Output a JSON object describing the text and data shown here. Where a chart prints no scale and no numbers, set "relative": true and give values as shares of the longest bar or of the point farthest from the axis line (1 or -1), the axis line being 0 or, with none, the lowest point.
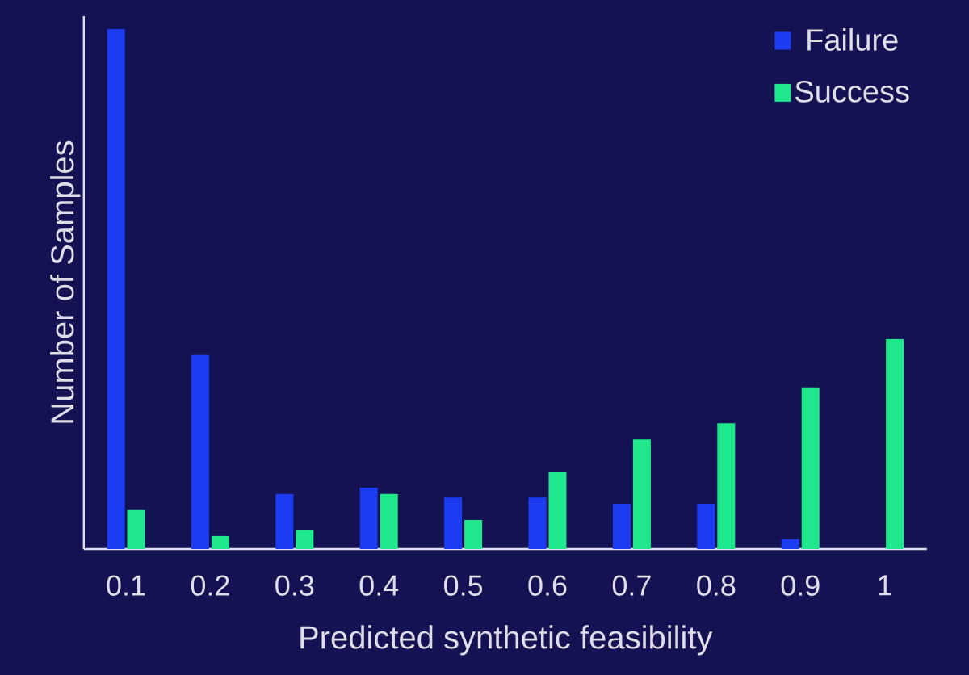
{
  "chart_data": {
    "type": "bar",
    "relative": true,
    "xlabel": "Predicted synthetic feasibility",
    "ylabel": "Number of Samples",
    "categories": [
      "0.1",
      "0.2",
      "0.3",
      "0.4",
      "0.5",
      "0.6",
      "0.7",
      "0.8",
      "0.9",
      "1"
    ],
    "series": [
      {
        "name": "Failure",
        "color": "#1c3cf2",
        "values": [
          1,
          0.373,
          0.106,
          0.118,
          0.099,
          0.099,
          0.087,
          0.087,
          0.019,
          0
        ]
      },
      {
        "name": "Success",
        "color": "#1fe88c",
        "values": [
          0.075,
          0.025,
          0.037,
          0.106,
          0.056,
          0.149,
          0.211,
          0.242,
          0.311,
          0.404
        ]
      }
    ],
    "legend": "top right",
    "grid": false
  }
}
